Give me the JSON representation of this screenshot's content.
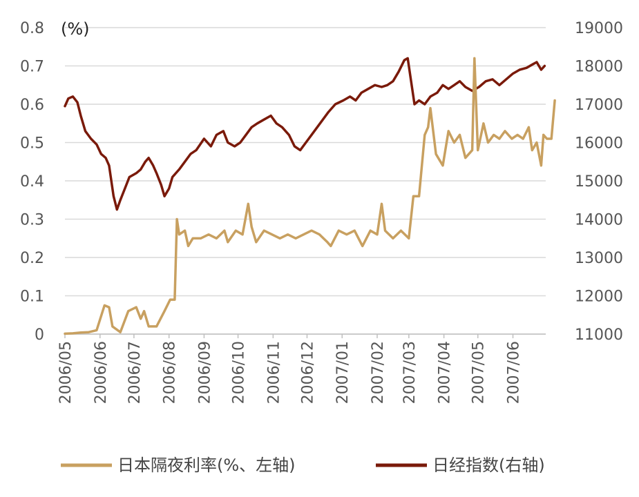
{
  "chart_data": {
    "type": "line",
    "left_axis_unit": "(%)",
    "x_tick_labels": [
      "2006/05",
      "2006/06",
      "2006/07",
      "2006/08",
      "2006/09",
      "2006/10",
      "2006/11",
      "2006/12",
      "2007/01",
      "2007/02",
      "2007/03",
      "2007/04",
      "2007/05",
      "2007/06"
    ],
    "y_left_ticks": [
      "0",
      "0.1",
      "0.2",
      "0.3",
      "0.4",
      "0.5",
      "0.6",
      "0.7",
      "0.8"
    ],
    "y_right_ticks": [
      "11000",
      "12000",
      "13000",
      "14000",
      "15000",
      "16000",
      "17000",
      "18000",
      "19000"
    ],
    "ylim_left": [
      0,
      0.8
    ],
    "ylim_right": [
      11000,
      19000
    ],
    "xlim": [
      "2006-05-01",
      "2007-06-30"
    ],
    "grid": "horizontal",
    "legend_position": "bottom",
    "series": [
      {
        "name": "日本隔夜利率(%、左轴)",
        "axis": "left",
        "color": "#C8A060",
        "points": [
          [
            "2006-05-01",
            0.001
          ],
          [
            "2006-05-08",
            0.002
          ],
          [
            "2006-05-15",
            0.004
          ],
          [
            "2006-05-22",
            0.005
          ],
          [
            "2006-05-29",
            0.01
          ],
          [
            "2006-06-05",
            0.075
          ],
          [
            "2006-06-09",
            0.07
          ],
          [
            "2006-06-12",
            0.02
          ],
          [
            "2006-06-19",
            0.005
          ],
          [
            "2006-06-26",
            0.06
          ],
          [
            "2006-07-03",
            0.07
          ],
          [
            "2006-07-07",
            0.04
          ],
          [
            "2006-07-10",
            0.06
          ],
          [
            "2006-07-14",
            0.02
          ],
          [
            "2006-07-21",
            0.02
          ],
          [
            "2006-07-28",
            0.06
          ],
          [
            "2006-08-02",
            0.09
          ],
          [
            "2006-08-06",
            0.09
          ],
          [
            "2006-08-08",
            0.3
          ],
          [
            "2006-08-10",
            0.26
          ],
          [
            "2006-08-15",
            0.27
          ],
          [
            "2006-08-18",
            0.23
          ],
          [
            "2006-08-22",
            0.25
          ],
          [
            "2006-08-29",
            0.25
          ],
          [
            "2006-09-05",
            0.26
          ],
          [
            "2006-09-12",
            0.25
          ],
          [
            "2006-09-19",
            0.27
          ],
          [
            "2006-09-22",
            0.24
          ],
          [
            "2006-09-29",
            0.27
          ],
          [
            "2006-10-05",
            0.26
          ],
          [
            "2006-10-10",
            0.34
          ],
          [
            "2006-10-13",
            0.28
          ],
          [
            "2006-10-17",
            0.24
          ],
          [
            "2006-10-24",
            0.27
          ],
          [
            "2006-10-31",
            0.26
          ],
          [
            "2006-11-07",
            0.25
          ],
          [
            "2006-11-14",
            0.26
          ],
          [
            "2006-11-21",
            0.25
          ],
          [
            "2006-11-28",
            0.26
          ],
          [
            "2006-12-05",
            0.27
          ],
          [
            "2006-12-12",
            0.26
          ],
          [
            "2006-12-19",
            0.24
          ],
          [
            "2006-12-22",
            0.23
          ],
          [
            "2006-12-29",
            0.27
          ],
          [
            "2007-01-05",
            0.26
          ],
          [
            "2007-01-12",
            0.27
          ],
          [
            "2007-01-19",
            0.23
          ],
          [
            "2007-01-26",
            0.27
          ],
          [
            "2007-02-01",
            0.26
          ],
          [
            "2007-02-05",
            0.34
          ],
          [
            "2007-02-08",
            0.27
          ],
          [
            "2007-02-15",
            0.25
          ],
          [
            "2007-02-22",
            0.27
          ],
          [
            "2007-03-01",
            0.25
          ],
          [
            "2007-03-05",
            0.36
          ],
          [
            "2007-03-10",
            0.36
          ],
          [
            "2007-03-15",
            0.52
          ],
          [
            "2007-03-18",
            0.54
          ],
          [
            "2007-03-20",
            0.59
          ],
          [
            "2007-03-25",
            0.47
          ],
          [
            "2007-03-31",
            0.44
          ],
          [
            "2007-04-05",
            0.53
          ],
          [
            "2007-04-10",
            0.5
          ],
          [
            "2007-04-15",
            0.52
          ],
          [
            "2007-04-20",
            0.46
          ],
          [
            "2007-04-26",
            0.48
          ],
          [
            "2007-04-28",
            0.72
          ],
          [
            "2007-05-01",
            0.48
          ],
          [
            "2007-05-06",
            0.55
          ],
          [
            "2007-05-10",
            0.5
          ],
          [
            "2007-05-15",
            0.52
          ],
          [
            "2007-05-20",
            0.51
          ],
          [
            "2007-05-25",
            0.53
          ],
          [
            "2007-05-31",
            0.51
          ],
          [
            "2007-06-05",
            0.52
          ],
          [
            "2007-06-10",
            0.51
          ],
          [
            "2007-06-15",
            0.54
          ],
          [
            "2007-06-18",
            0.48
          ],
          [
            "2007-06-22",
            0.5
          ],
          [
            "2007-06-26",
            0.44
          ],
          [
            "2007-06-28",
            0.52
          ],
          [
            "2007-07-01",
            0.51
          ],
          [
            "2007-07-05",
            0.51
          ],
          [
            "2007-07-08",
            0.61
          ]
        ]
      },
      {
        "name": "日经指数(右轴)",
        "axis": "right",
        "color": "#7A1A0A",
        "points": [
          [
            "2006-05-01",
            16950
          ],
          [
            "2006-05-04",
            17150
          ],
          [
            "2006-05-08",
            17200
          ],
          [
            "2006-05-12",
            17050
          ],
          [
            "2006-05-15",
            16700
          ],
          [
            "2006-05-19",
            16300
          ],
          [
            "2006-05-24",
            16100
          ],
          [
            "2006-05-29",
            15950
          ],
          [
            "2006-06-02",
            15700
          ],
          [
            "2006-06-06",
            15600
          ],
          [
            "2006-06-09",
            15400
          ],
          [
            "2006-06-13",
            14600
          ],
          [
            "2006-06-16",
            14250
          ],
          [
            "2006-06-19",
            14500
          ],
          [
            "2006-06-23",
            14800
          ],
          [
            "2006-06-27",
            15100
          ],
          [
            "2006-07-03",
            15200
          ],
          [
            "2006-07-07",
            15300
          ],
          [
            "2006-07-11",
            15500
          ],
          [
            "2006-07-14",
            15600
          ],
          [
            "2006-07-18",
            15400
          ],
          [
            "2006-07-21",
            15200
          ],
          [
            "2006-07-25",
            14900
          ],
          [
            "2006-07-28",
            14600
          ],
          [
            "2006-08-01",
            14800
          ],
          [
            "2006-08-04",
            15100
          ],
          [
            "2006-08-10",
            15300
          ],
          [
            "2006-08-15",
            15500
          ],
          [
            "2006-08-20",
            15700
          ],
          [
            "2006-08-25",
            15800
          ],
          [
            "2006-09-01",
            16100
          ],
          [
            "2006-09-07",
            15900
          ],
          [
            "2006-09-12",
            16200
          ],
          [
            "2006-09-18",
            16300
          ],
          [
            "2006-09-22",
            16000
          ],
          [
            "2006-09-28",
            15900
          ],
          [
            "2006-10-03",
            16000
          ],
          [
            "2006-10-08",
            16200
          ],
          [
            "2006-10-13",
            16400
          ],
          [
            "2006-10-18",
            16500
          ],
          [
            "2006-10-24",
            16600
          ],
          [
            "2006-10-30",
            16700
          ],
          [
            "2006-11-04",
            16500
          ],
          [
            "2006-11-09",
            16400
          ],
          [
            "2006-11-15",
            16200
          ],
          [
            "2006-11-20",
            15900
          ],
          [
            "2006-11-25",
            15800
          ],
          [
            "2006-11-30",
            16000
          ],
          [
            "2006-12-05",
            16200
          ],
          [
            "2006-12-10",
            16400
          ],
          [
            "2006-12-15",
            16600
          ],
          [
            "2006-12-20",
            16800
          ],
          [
            "2006-12-26",
            17000
          ],
          [
            "2007-01-02",
            17100
          ],
          [
            "2007-01-08",
            17200
          ],
          [
            "2007-01-13",
            17100
          ],
          [
            "2007-01-18",
            17300
          ],
          [
            "2007-01-24",
            17400
          ],
          [
            "2007-01-30",
            17500
          ],
          [
            "2007-02-05",
            17450
          ],
          [
            "2007-02-10",
            17500
          ],
          [
            "2007-02-15",
            17600
          ],
          [
            "2007-02-20",
            17850
          ],
          [
            "2007-02-25",
            18150
          ],
          [
            "2007-02-28",
            18200
          ],
          [
            "2007-03-03",
            17600
          ],
          [
            "2007-03-06",
            17000
          ],
          [
            "2007-03-10",
            17100
          ],
          [
            "2007-03-15",
            17000
          ],
          [
            "2007-03-20",
            17200
          ],
          [
            "2007-03-26",
            17300
          ],
          [
            "2007-03-31",
            17500
          ],
          [
            "2007-04-05",
            17400
          ],
          [
            "2007-04-10",
            17500
          ],
          [
            "2007-04-15",
            17600
          ],
          [
            "2007-04-20",
            17450
          ],
          [
            "2007-04-26",
            17350
          ],
          [
            "2007-05-02",
            17450
          ],
          [
            "2007-05-08",
            17600
          ],
          [
            "2007-05-14",
            17650
          ],
          [
            "2007-05-20",
            17500
          ],
          [
            "2007-05-26",
            17650
          ],
          [
            "2007-06-01",
            17800
          ],
          [
            "2007-06-07",
            17900
          ],
          [
            "2007-06-13",
            17950
          ],
          [
            "2007-06-19",
            18050
          ],
          [
            "2007-06-22",
            18100
          ],
          [
            "2007-06-26",
            17900
          ],
          [
            "2007-06-29",
            18000
          ]
        ]
      }
    ]
  }
}
